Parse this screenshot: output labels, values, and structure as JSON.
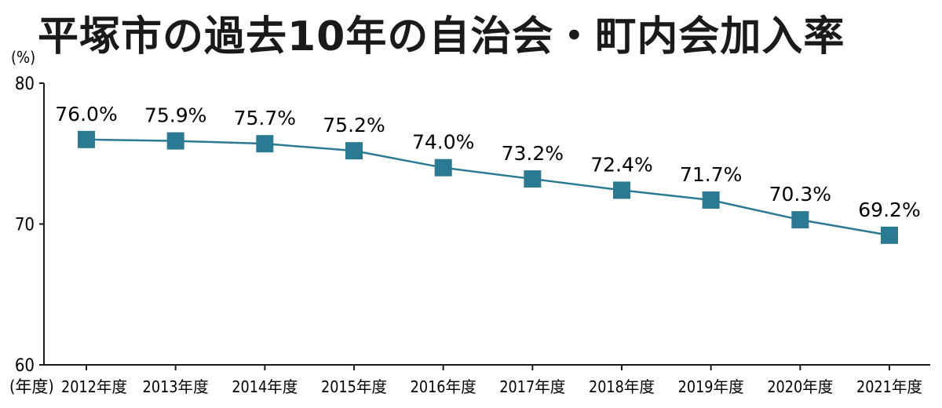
{
  "chart_data": {
    "type": "line",
    "title": "平塚市の過去10年の自治会・町内会加入率",
    "y_unit_label": "(%)",
    "x_unit_label": "(年度)",
    "categories": [
      "2012年度",
      "2013年度",
      "2014年度",
      "2015年度",
      "2016年度",
      "2017年度",
      "2018年度",
      "2019年度",
      "2020年度",
      "2021年度"
    ],
    "values": [
      76.0,
      75.9,
      75.7,
      75.2,
      74.0,
      73.2,
      72.4,
      71.7,
      70.3,
      69.2
    ],
    "value_labels": [
      "76.0%",
      "75.9%",
      "75.7%",
      "75.2%",
      "74.0%",
      "73.2%",
      "72.4%",
      "71.7%",
      "70.3%",
      "69.2%"
    ],
    "ylim": [
      60,
      80
    ],
    "yticks": [
      60,
      70,
      80
    ],
    "grid": false,
    "colors": {
      "line": "#2a7a93",
      "marker": "#2a7a93",
      "axis": "#1a1a1a"
    }
  }
}
